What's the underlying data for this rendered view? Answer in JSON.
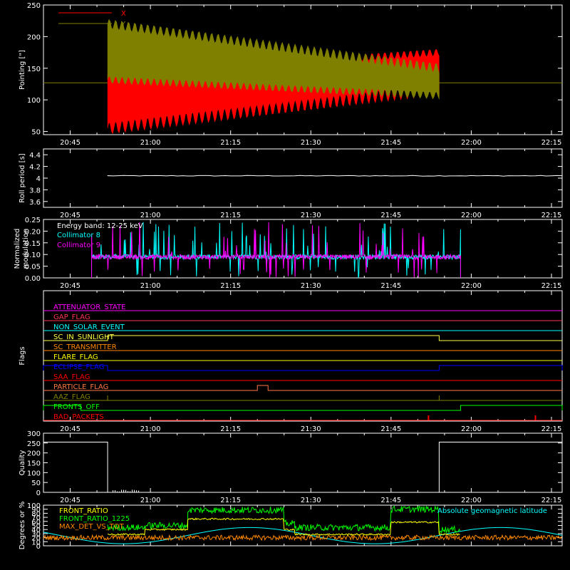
{
  "chart_data": [
    {
      "type": "line",
      "ylabel": "Pointing [\"]",
      "ylim": [
        45,
        250
      ],
      "yticks": [
        50,
        100,
        150,
        200,
        250
      ],
      "x_ticks": [
        "20:45",
        "21:00",
        "21:15",
        "21:30",
        "21:45",
        "22:00",
        "22:15"
      ],
      "series": [
        {
          "name": "X",
          "color": "#ff0000",
          "description": "oscillation ~50-185 from 20:52 to 21:55, flat ~127 outside"
        },
        {
          "name": "Y",
          "color": "#808000",
          "description": "oscillation ~95-225 from 20:52 to 21:55, flat ~127 outside"
        }
      ],
      "baseline": 127
    },
    {
      "type": "line",
      "ylabel": "Roll period [s]",
      "ylim": [
        3.5,
        4.5
      ],
      "yticks": [
        3.6,
        3.8,
        4.0,
        4.2,
        4.4
      ],
      "x_ticks": [
        "20:45",
        "21:00",
        "21:15",
        "21:30",
        "21:45",
        "22:00",
        "22:15"
      ],
      "series": [
        {
          "color": "#ffffff",
          "value": 4.04
        }
      ]
    },
    {
      "type": "line",
      "ylabel": "Normalized modulation",
      "ylim": [
        0,
        0.25
      ],
      "yticks": [
        "0.00",
        "0.05",
        "0.10",
        "0.15",
        "0.20",
        "0.25"
      ],
      "x_ticks": [
        "20:45",
        "21:00",
        "21:15",
        "21:30",
        "21:45",
        "22:00",
        "22:15"
      ],
      "legend_title": "Energy band: 12-25 keV",
      "series": [
        {
          "name": "Collimator 8",
          "color": "#00ffff"
        },
        {
          "name": "Collimator 9",
          "color": "#ff00ff"
        }
      ],
      "active_range": [
        "20:49",
        "21:58"
      ],
      "typical_value": 0.09
    },
    {
      "type": "line",
      "ylabel": "Flags",
      "x_ticks": [
        "20:45",
        "21:00",
        "21:15",
        "21:30",
        "21:45",
        "22:00",
        "22:15"
      ],
      "flags": [
        {
          "name": "ATTENUATOR_STATE",
          "color": "#ff00ff"
        },
        {
          "name": "GAP_FLAG",
          "color": "#ff3355"
        },
        {
          "name": "NON_SOLAR_EVENT",
          "color": "#00ffff"
        },
        {
          "name": "SC_IN_SUNLIGHT",
          "color": "#ffff44",
          "high": [
            [
              "20:52",
              "21:54"
            ]
          ]
        },
        {
          "name": "SC_TRANSMITTER",
          "color": "#ff8800"
        },
        {
          "name": "FLARE_FLAG",
          "color": "#ffff00"
        },
        {
          "name": "ECLIPSE_FLAG",
          "color": "#0000ff",
          "high": [
            [
              "20:40",
              "20:52"
            ],
            [
              "21:54",
              "22:17"
            ]
          ]
        },
        {
          "name": "SAA_FLAG",
          "color": "#ff0000"
        },
        {
          "name": "PARTICLE_FLAG",
          "color": "#ff7744",
          "high": [
            [
              "21:20",
              "21:22"
            ]
          ]
        },
        {
          "name": "AAZ_FLAG",
          "color": "#808000",
          "spikes": [
            "20:52",
            "21:54"
          ]
        },
        {
          "name": "FRONTS_OFF",
          "color": "#00ff00",
          "high": [
            [
              "20:40",
              "20:47"
            ],
            [
              "21:58",
              "22:17"
            ]
          ]
        },
        {
          "name": "BAD_PACKETS",
          "color": "#ff0000",
          "spikes": [
            "21:52",
            "22:12"
          ]
        }
      ]
    },
    {
      "type": "line",
      "ylabel": "Quality",
      "ylim": [
        0,
        300
      ],
      "yticks": [
        0,
        50,
        100,
        150,
        200,
        250,
        300
      ],
      "x_ticks": [
        "20:45",
        "21:00",
        "21:15",
        "21:30",
        "21:45",
        "22:00",
        "22:15"
      ],
      "series": [
        {
          "color": "#ffffff",
          "segments": [
            [
              "20:40",
              "20:52",
              255
            ],
            [
              "20:52",
              "21:54",
              0
            ],
            [
              "21:54",
              "22:17",
              255
            ]
          ]
        }
      ]
    },
    {
      "type": "line",
      "ylabel": "Degrees or %",
      "ylim": [
        0,
        100
      ],
      "yticks": [
        0,
        10,
        20,
        30,
        40,
        50,
        60,
        70,
        80,
        90,
        100
      ],
      "series": [
        {
          "name": "FRONT_RATIO",
          "color": "#ffff00"
        },
        {
          "name": "FRONT_RATIO_1225",
          "color": "#00ff00"
        },
        {
          "name": "MAX_DET_VS_TOT",
          "color": "#ff8800"
        },
        {
          "name": "Absolute geomagnetic latitude",
          "color": "#00ffff"
        }
      ],
      "levels": {
        "front_ratio_1225": [
          [
            "20:52",
            "20:59",
            45
          ],
          [
            "20:59",
            "21:07",
            50
          ],
          [
            "21:07",
            "21:25",
            88
          ],
          [
            "21:25",
            "21:27",
            55
          ],
          [
            "21:27",
            "21:45",
            45
          ],
          [
            "21:45",
            "21:54",
            90
          ],
          [
            "21:54",
            "21:58",
            40
          ]
        ],
        "front_ratio": [
          [
            "20:52",
            "20:59",
            28
          ],
          [
            "20:59",
            "21:07",
            40
          ],
          [
            "21:07",
            "21:25",
            66
          ],
          [
            "21:25",
            "21:27",
            40
          ],
          [
            "21:27",
            "21:45",
            28
          ],
          [
            "21:45",
            "21:54",
            58
          ],
          [
            "21:54",
            "21:58",
            28
          ]
        ]
      }
    }
  ]
}
